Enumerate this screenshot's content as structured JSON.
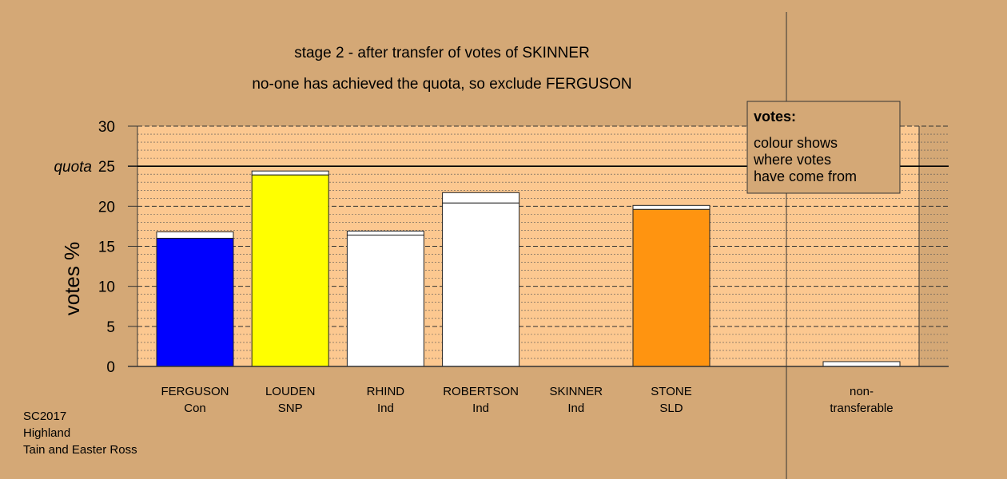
{
  "chart_data": {
    "type": "bar",
    "title": "stage 2 - after transfer of votes of SKINNER",
    "subtitle": "no-one has achieved the quota, so exclude FERGUSON",
    "ylabel": "votes %",
    "ylim": [
      0,
      30
    ],
    "yticks": [
      0,
      5,
      10,
      15,
      20,
      25,
      30
    ],
    "quota": 25,
    "quota_label": "quota",
    "grid": true,
    "categories": [
      {
        "name": "FERGUSON",
        "party": "Con",
        "base": 16.0,
        "total": 16.8,
        "color": "#0000ff"
      },
      {
        "name": "LOUDEN",
        "party": "SNP",
        "base": 23.9,
        "total": 24.4,
        "color": "#ffff00"
      },
      {
        "name": "RHIND",
        "party": "Ind",
        "base": 16.4,
        "total": 16.9,
        "color": "#ffffff"
      },
      {
        "name": "ROBERTSON",
        "party": "Ind",
        "base": 20.4,
        "total": 21.7,
        "color": "#ffffff"
      },
      {
        "name": "SKINNER",
        "party": "Ind",
        "base": 0,
        "total": 0,
        "color": "#ffffff"
      },
      {
        "name": "STONE",
        "party": "SLD",
        "base": 19.6,
        "total": 20.1,
        "color": "#ff9410"
      }
    ],
    "non_transferable": {
      "line1": "non-",
      "line2": "transferable",
      "value": 0.6,
      "color": "#ffffff"
    },
    "transfer_color": "#ffffff",
    "legend": {
      "title": "votes:",
      "lines": [
        "colour shows",
        "where votes",
        "have come from"
      ],
      "placement": "top-right"
    }
  },
  "footer": {
    "line1": "SC2017",
    "line2": "Highland",
    "line3": "Tain and Easter Ross"
  },
  "colors": {
    "background": "#d4a876",
    "plot_area": "#fcc890",
    "legend_box": "#d4a876"
  }
}
